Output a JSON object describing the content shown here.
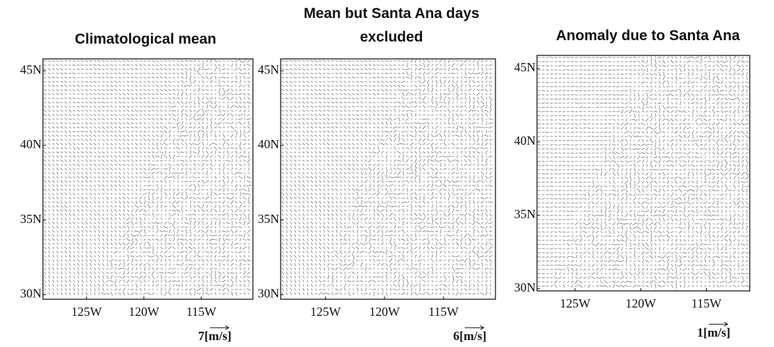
{
  "chart_data": [
    {
      "type": "quiver",
      "title": "Climatological mean",
      "xlim": [
        -128.8,
        -110.5
      ],
      "ylim": [
        29.7,
        45.8
      ],
      "xticks": [
        {
          "value": -125,
          "label": "125W"
        },
        {
          "value": -120,
          "label": "120W"
        },
        {
          "value": -115,
          "label": "115W"
        }
      ],
      "yticks": [
        {
          "value": 30,
          "label": "30N"
        },
        {
          "value": 35,
          "label": "35N"
        },
        {
          "value": 40,
          "label": "40N"
        },
        {
          "value": 45,
          "label": "45N"
        }
      ],
      "reference_label": "7[m/s]"
    },
    {
      "type": "quiver",
      "title": "Mean but Santa Ana days excluded",
      "xlim": [
        -128.8,
        -110.6
      ],
      "ylim": [
        29.7,
        45.8
      ],
      "xticks": [
        {
          "value": -125,
          "label": "125W"
        },
        {
          "value": -120,
          "label": "120W"
        },
        {
          "value": -115,
          "label": "115W"
        }
      ],
      "yticks": [
        {
          "value": 30,
          "label": "30N"
        },
        {
          "value": 35,
          "label": "35N"
        },
        {
          "value": 40,
          "label": "40N"
        },
        {
          "value": 45,
          "label": "45N"
        }
      ],
      "reference_label": "6[m/s]"
    },
    {
      "type": "quiver",
      "title": "Anomaly due to Santa Ana",
      "xlim": [
        -127.9,
        -111.7
      ],
      "ylim": [
        29.85,
        45.9
      ],
      "xticks": [
        {
          "value": -125,
          "label": "125W"
        },
        {
          "value": -120,
          "label": "120W"
        },
        {
          "value": -115,
          "label": "115W"
        }
      ],
      "yticks": [
        {
          "value": 30,
          "label": "30N"
        },
        {
          "value": 35,
          "label": "35N"
        },
        {
          "value": 40,
          "label": "40N"
        },
        {
          "value": 45,
          "label": "45N"
        }
      ],
      "reference_label": "1[m/s]"
    }
  ]
}
